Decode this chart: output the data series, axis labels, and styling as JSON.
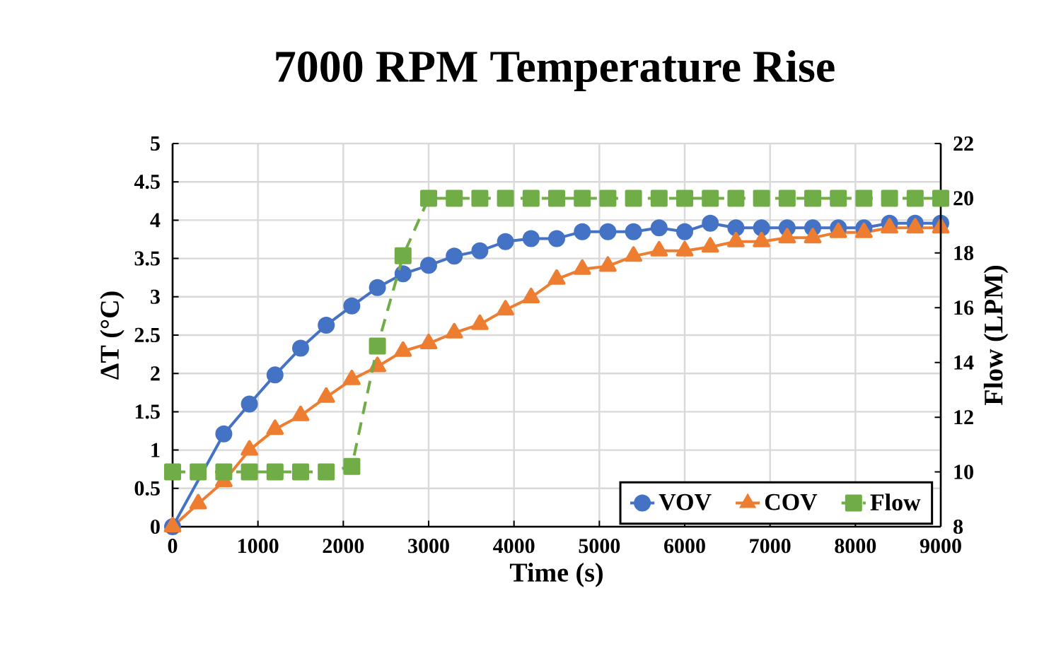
{
  "chart_data": {
    "type": "line",
    "title": "7000 RPM Temperature Rise",
    "xlabel": "Time (s)",
    "ylabel": "ΔT (°C)",
    "y2label": "Flow (LPM)",
    "x": [
      0,
      300,
      600,
      900,
      1200,
      1500,
      1800,
      2100,
      2400,
      2700,
      3000,
      3300,
      3600,
      3900,
      4200,
      4500,
      4800,
      5100,
      5400,
      5700,
      6000,
      6300,
      6600,
      6900,
      7200,
      7500,
      7800,
      8100,
      8400,
      8700,
      9000
    ],
    "series": [
      {
        "name": "VOV",
        "color": "#4472c4",
        "marker": "circle",
        "line_style": "solid",
        "values": [
          0,
          null,
          1.21,
          1.6,
          1.98,
          2.33,
          2.63,
          2.88,
          3.12,
          3.3,
          3.41,
          3.53,
          3.6,
          3.72,
          3.76,
          3.76,
          3.85,
          3.85,
          3.85,
          3.9,
          3.85,
          3.96,
          3.9,
          3.9,
          3.9,
          3.9,
          3.9,
          3.9,
          3.96,
          3.96,
          3.96
        ]
      },
      {
        "name": "COV",
        "color": "#ed7d31",
        "marker": "triangle",
        "line_style": "solid",
        "values": [
          0,
          0.3,
          0.59,
          1.0,
          1.27,
          1.45,
          1.69,
          1.92,
          2.09,
          2.29,
          2.39,
          2.53,
          2.64,
          2.83,
          2.99,
          3.23,
          3.36,
          3.4,
          3.53,
          3.6,
          3.6,
          3.65,
          3.72,
          3.72,
          3.77,
          3.77,
          3.84,
          3.84,
          3.9,
          3.9,
          3.9
        ]
      },
      {
        "name": "Flow",
        "color": "#70ad47",
        "marker": "square",
        "line_style": "dashed",
        "axis": "y2",
        "values": [
          10,
          10,
          10,
          10,
          10,
          10,
          10,
          10.2,
          14.6,
          17.9,
          20,
          20,
          20,
          20,
          20,
          20,
          20,
          20,
          20,
          20,
          20,
          20,
          20,
          20,
          20,
          20,
          20,
          20,
          20,
          20,
          20
        ]
      }
    ],
    "xlim": [
      0,
      9000
    ],
    "xticks": [
      0,
      1000,
      2000,
      3000,
      4000,
      5000,
      6000,
      7000,
      8000,
      9000
    ],
    "ylim": [
      0,
      5
    ],
    "yticks": [
      0,
      0.5,
      1,
      1.5,
      2,
      2.5,
      3,
      3.5,
      4,
      4.5,
      5
    ],
    "y2lim": [
      8,
      22
    ],
    "y2ticks": [
      8,
      10,
      12,
      14,
      16,
      18,
      20,
      22
    ],
    "grid": true,
    "legend": "bottom right"
  }
}
